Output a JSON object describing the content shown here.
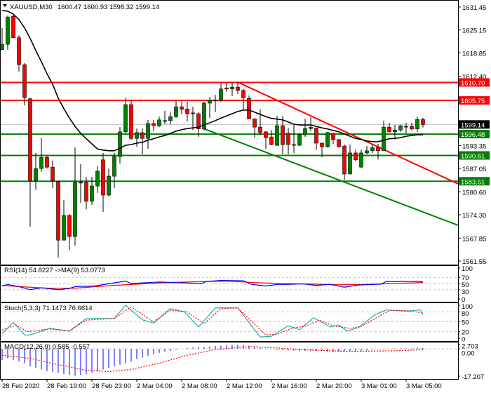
{
  "header": {
    "symbol": "XAUUSD,M30",
    "ohlc": "1600.47 1600.93 1598.32 1599.14"
  },
  "colors": {
    "bull": "#008000",
    "bear": "#ff0000",
    "ma": "#000000",
    "resistance": "#ff0000",
    "support": "#008000",
    "rsi": "#0000ff",
    "rsi_ma": "#ff0000",
    "stoch_main": "#20b2aa",
    "stoch_signal": "#ff0000",
    "macd_hist": "#0000ff",
    "macd_signal": "#ff0000"
  },
  "chart_data": [
    {
      "type": "candlestick",
      "title": "XAUUSD,M30",
      "ylim": [
        1561.55,
        1631.45
      ],
      "price_ticks": [
        "1631.45",
        "1625.15",
        "1618.85",
        "1612.40",
        "1593.35",
        "1587.05",
        "1580.60",
        "1574.30",
        "1567.85",
        "1561.55"
      ],
      "time_labels": [
        "28 Feb 2020",
        "28 Feb 19:00",
        "28 Feb 23:00",
        "2 Mar 04:00",
        "2 Mar 08:00",
        "2 Mar 12:00",
        "2 Mar 16:00",
        "2 Mar 20:00",
        "3 Mar 01:00",
        "3 Mar 05:00"
      ],
      "time_label_bars": [
        0,
        8,
        16,
        24,
        32,
        40,
        48,
        56,
        64,
        72
      ],
      "current_price": "1599.14",
      "candles_ohlc": [
        [
          1619.7,
          1625.7,
          1619.7,
          1621.2
        ],
        [
          1621.2,
          1629.1,
          1619.7,
          1628.7
        ],
        [
          1628.9,
          1629.5,
          1623.0,
          1623.0
        ],
        [
          1623.0,
          1623.7,
          1613.7,
          1615.6
        ],
        [
          1615.6,
          1616.0,
          1604.4,
          1606.5
        ],
        [
          1606.2,
          1606.5,
          1571.0,
          1583.6
        ],
        [
          1583.6,
          1591.3,
          1581.2,
          1587.0
        ],
        [
          1587.0,
          1595.5,
          1586.1,
          1590.1
        ],
        [
          1590.1,
          1590.5,
          1587.0,
          1587.4
        ],
        [
          1587.4,
          1589.2,
          1581.6,
          1583.6
        ],
        [
          1583.4,
          1583.6,
          1562.5,
          1567.3
        ],
        [
          1567.3,
          1578.3,
          1567.3,
          1574.1
        ],
        [
          1574.1,
          1574.5,
          1564.6,
          1568.3
        ],
        [
          1568.3,
          1592.8,
          1565.8,
          1583.2
        ],
        [
          1583.2,
          1588.2,
          1577.6,
          1583.2
        ],
        [
          1583.2,
          1584.7,
          1575.8,
          1578.0
        ],
        [
          1578.0,
          1584.7,
          1577.0,
          1582.2
        ],
        [
          1582.2,
          1587.6,
          1580.3,
          1586.3
        ],
        [
          1589.4,
          1591.3,
          1575.1,
          1579.7
        ],
        [
          1579.7,
          1587.0,
          1579.3,
          1584.9
        ],
        [
          1584.9,
          1591.3,
          1581.6,
          1590.3
        ],
        [
          1590.3,
          1598.4,
          1588.4,
          1597.1
        ],
        [
          1597.1,
          1606.5,
          1596.7,
          1604.6
        ],
        [
          1604.6,
          1605.8,
          1594.8,
          1595.3
        ],
        [
          1595.3,
          1598.0,
          1593.0,
          1596.9
        ],
        [
          1596.9,
          1598.0,
          1590.9,
          1595.3
        ],
        [
          1595.3,
          1600.4,
          1592.4,
          1599.4
        ],
        [
          1599.4,
          1600.4,
          1597.3,
          1598.8
        ],
        [
          1598.8,
          1601.3,
          1598.4,
          1600.4
        ],
        [
          1600.2,
          1602.9,
          1599.2,
          1600.2
        ],
        [
          1600.2,
          1602.5,
          1599.2,
          1601.3
        ],
        [
          1601.3,
          1605.6,
          1600.9,
          1604.0
        ],
        [
          1604.0,
          1605.4,
          1601.9,
          1603.3
        ],
        [
          1603.4,
          1605.4,
          1600.0,
          1602.1
        ],
        [
          1602.3,
          1604.0,
          1597.6,
          1602.3
        ],
        [
          1602.1,
          1602.5,
          1595.7,
          1597.9
        ],
        [
          1597.9,
          1605.4,
          1597.5,
          1605.0
        ],
        [
          1605.0,
          1606.7,
          1600.9,
          1605.8
        ],
        [
          1605.8,
          1607.3,
          1602.5,
          1605.8
        ],
        [
          1605.8,
          1610.6,
          1605.4,
          1608.9
        ],
        [
          1609.2,
          1610.6,
          1608.1,
          1608.9
        ],
        [
          1608.9,
          1610.8,
          1606.9,
          1609.4
        ],
        [
          1609.4,
          1610.8,
          1607.5,
          1608.5
        ],
        [
          1608.5,
          1608.9,
          1603.1,
          1606.5
        ],
        [
          1606.3,
          1607.1,
          1600.6,
          1600.7
        ],
        [
          1600.7,
          1600.7,
          1595.5,
          1598.4
        ],
        [
          1598.4,
          1603.3,
          1596.3,
          1596.9
        ],
        [
          1597.1,
          1597.3,
          1592.4,
          1595.5
        ],
        [
          1595.7,
          1597.6,
          1593.4,
          1593.6
        ],
        [
          1593.4,
          1601.5,
          1593.2,
          1598.8
        ],
        [
          1598.8,
          1601.5,
          1590.9,
          1593.6
        ],
        [
          1596.7,
          1598.2,
          1590.9,
          1593.6
        ],
        [
          1593.6,
          1599.0,
          1591.3,
          1593.6
        ],
        [
          1593.4,
          1596.9,
          1593.2,
          1596.3
        ],
        [
          1596.3,
          1600.7,
          1595.7,
          1598.0
        ],
        [
          1598.0,
          1601.1,
          1597.3,
          1598.4
        ],
        [
          1598.2,
          1598.2,
          1592.1,
          1594.0
        ],
        [
          1594.0,
          1594.0,
          1590.1,
          1593.0
        ],
        [
          1593.0,
          1597.1,
          1592.8,
          1596.9
        ],
        [
          1596.7,
          1596.7,
          1593.8,
          1595.0
        ],
        [
          1595.0,
          1595.0,
          1592.8,
          1593.0
        ],
        [
          1593.2,
          1593.6,
          1583.8,
          1585.5
        ],
        [
          1585.5,
          1593.6,
          1585.5,
          1591.3
        ],
        [
          1591.3,
          1592.2,
          1589.0,
          1589.4
        ],
        [
          1587.4,
          1592.2,
          1587.2,
          1591.3
        ],
        [
          1591.3,
          1593.2,
          1590.9,
          1591.9
        ],
        [
          1591.9,
          1593.8,
          1591.3,
          1592.8
        ],
        [
          1592.8,
          1593.8,
          1589.5,
          1591.9
        ],
        [
          1591.9,
          1600.2,
          1591.9,
          1598.4
        ],
        [
          1598.4,
          1599.6,
          1596.9,
          1597.1
        ],
        [
          1597.1,
          1599.0,
          1595.0,
          1597.6
        ],
        [
          1597.6,
          1599.0,
          1597.1,
          1598.8
        ],
        [
          1598.6,
          1599.6,
          1596.7,
          1598.6
        ],
        [
          1598.6,
          1599.6,
          1597.5,
          1597.9
        ],
        [
          1597.9,
          1601.3,
          1597.1,
          1600.5
        ],
        [
          1600.47,
          1600.93,
          1598.32,
          1599.14
        ]
      ],
      "moving_average": [
        1630.5,
        1630.3,
        1629.5,
        1628.0,
        1625.7,
        1622.8,
        1619.5,
        1616.4,
        1613.1,
        1610.2,
        1606.4,
        1603.5,
        1600.9,
        1598.6,
        1596.7,
        1595.2,
        1593.8,
        1592.4,
        1592.1,
        1591.9,
        1591.9,
        1592.6,
        1593.4,
        1593.6,
        1594.0,
        1594.2,
        1594.8,
        1595.2,
        1595.7,
        1596.1,
        1596.7,
        1597.3,
        1597.7,
        1598.0,
        1598.2,
        1598.4,
        1599.0,
        1599.6,
        1600.2,
        1600.9,
        1601.5,
        1602.1,
        1602.7,
        1603.1,
        1603.1,
        1602.5,
        1601.9,
        1601.3,
        1600.8,
        1600.6,
        1600.4,
        1599.8,
        1599.2,
        1599.0,
        1599.0,
        1599.0,
        1598.6,
        1598.2,
        1597.9,
        1597.5,
        1597.1,
        1596.5,
        1595.9,
        1595.3,
        1595.0,
        1594.6,
        1594.4,
        1594.4,
        1594.8,
        1595.2,
        1595.3,
        1595.5,
        1595.9,
        1596.1,
        1596.3,
        1596.3
      ],
      "horizontal_levels": [
        {
          "price": "1610.70",
          "kind": "resistance"
        },
        {
          "price": "1605.75",
          "kind": "resistance"
        },
        {
          "price": "1596.48",
          "kind": "support"
        },
        {
          "price": "1590.61",
          "kind": "support"
        },
        {
          "price": "1583.51",
          "kind": "support"
        }
      ],
      "trendlines": [
        {
          "kind": "resistance",
          "from": {
            "bar": 42.1,
            "price": 1610.7
          },
          "to": {
            "bar": 81.25,
            "price": 1582.8
          }
        },
        {
          "kind": "support",
          "from": {
            "bar": 35.9,
            "price": 1598.0
          },
          "to": {
            "bar": 81.25,
            "price": 1571.4
          }
        }
      ]
    },
    {
      "type": "line",
      "label": "RSI(14) 54.8227  ->MA(9) 53.0773",
      "ylim": [
        0,
        100
      ],
      "ticks": [
        "100",
        "70",
        "50",
        "30",
        "0"
      ],
      "levels": [
        70,
        50,
        30
      ],
      "rsi": [
        [
          0,
          42
        ],
        [
          1,
          47
        ],
        [
          3,
          40
        ],
        [
          5,
          30
        ],
        [
          7,
          36
        ],
        [
          10,
          30
        ],
        [
          12,
          34
        ],
        [
          13,
          40
        ],
        [
          16.5,
          42
        ],
        [
          22,
          58
        ],
        [
          23,
          50
        ],
        [
          28,
          55
        ],
        [
          35.5,
          50
        ],
        [
          36.5,
          57
        ],
        [
          39,
          60
        ],
        [
          43,
          59
        ],
        [
          44.5,
          47
        ],
        [
          47,
          42
        ],
        [
          49,
          47
        ],
        [
          51,
          47
        ],
        [
          53.5,
          49
        ],
        [
          56,
          44
        ],
        [
          58.5,
          47
        ],
        [
          61,
          38
        ],
        [
          63.5,
          45
        ],
        [
          67.5,
          48
        ],
        [
          68.5,
          57
        ],
        [
          70,
          56
        ],
        [
          74,
          57
        ],
        [
          75,
          54.82
        ]
      ],
      "rsi_ma": [
        [
          0,
          44
        ],
        [
          3,
          40
        ],
        [
          8,
          35
        ],
        [
          13,
          35
        ],
        [
          20,
          44
        ],
        [
          28,
          52
        ],
        [
          35,
          56
        ],
        [
          40,
          58
        ],
        [
          45,
          53
        ],
        [
          50,
          50
        ],
        [
          55,
          48
        ],
        [
          60,
          46
        ],
        [
          65,
          47
        ],
        [
          70,
          50
        ],
        [
          75,
          53.08
        ]
      ]
    },
    {
      "type": "line",
      "label": "Stoch(5,3,3) 71.1473 76.6614",
      "ylim": [
        0,
        100
      ],
      "ticks": [
        "100",
        "80",
        "50",
        "20",
        "0"
      ],
      "levels": [
        80,
        50,
        20
      ],
      "main": [
        [
          0,
          14
        ],
        [
          2,
          48
        ],
        [
          4,
          10
        ],
        [
          5,
          10
        ],
        [
          8.5,
          30
        ],
        [
          12,
          22
        ],
        [
          15,
          60
        ],
        [
          20,
          60
        ],
        [
          22,
          100
        ],
        [
          25,
          56
        ],
        [
          27,
          46
        ],
        [
          30,
          90
        ],
        [
          32.5,
          80
        ],
        [
          35,
          34
        ],
        [
          38,
          92
        ],
        [
          42,
          92
        ],
        [
          46,
          4
        ],
        [
          48,
          6
        ],
        [
          51,
          38
        ],
        [
          53,
          26
        ],
        [
          55.5,
          62
        ],
        [
          58.5,
          34
        ],
        [
          60,
          40
        ],
        [
          61.5,
          22
        ],
        [
          63.5,
          32
        ],
        [
          66.5,
          72
        ],
        [
          68.5,
          86
        ],
        [
          72,
          82
        ],
        [
          74.5,
          86
        ],
        [
          75,
          71.15
        ]
      ],
      "signal": [
        [
          0,
          25
        ],
        [
          2.5,
          40
        ],
        [
          4.5,
          20
        ],
        [
          8.5,
          28
        ],
        [
          12,
          22
        ],
        [
          15,
          55
        ],
        [
          20,
          60
        ],
        [
          23,
          95
        ],
        [
          27,
          50
        ],
        [
          30,
          85
        ],
        [
          33,
          80
        ],
        [
          36,
          44
        ],
        [
          39,
          90
        ],
        [
          42,
          92
        ],
        [
          47,
          10
        ],
        [
          49,
          12
        ],
        [
          52,
          32
        ],
        [
          54,
          36
        ],
        [
          56.5,
          55
        ],
        [
          59,
          38
        ],
        [
          62,
          30
        ],
        [
          64,
          36
        ],
        [
          67,
          65
        ],
        [
          69,
          84
        ],
        [
          72,
          84
        ],
        [
          75,
          76.66
        ]
      ]
    },
    {
      "type": "bar",
      "label": "MACD(12,26,9) 0.585 -0.557",
      "ylim": [
        -17.207,
        2.703
      ],
      "ticks": [
        "2.703",
        "0.00",
        "-17.207"
      ],
      "histogram": [
        -7,
        -6,
        -7,
        -8,
        -9,
        -11,
        -12,
        -13,
        -14,
        -14.5,
        -15,
        -16,
        -16.5,
        -17,
        -16.5,
        -16,
        -15,
        -14,
        -13,
        -12,
        -11,
        -10,
        -9,
        -8,
        -6.5,
        -5.5,
        -4.5,
        -3.5,
        -2.5,
        -1.8,
        -1.2,
        -0.5,
        0,
        0.5,
        0.8,
        1,
        1.2,
        1.5,
        1.8,
        2,
        2.2,
        2.5,
        2.7,
        2.4,
        2,
        1.5,
        0.8,
        0.2,
        -0.3,
        -0.6,
        -0.8,
        -1,
        -1.1,
        -1.2,
        -1.3,
        -1.2,
        -1.3,
        -1.4,
        -1.8,
        -2,
        -1.8,
        -1.6,
        -1.5,
        -1.4,
        -1.3,
        -1.0,
        -0.6,
        -0.2,
        0,
        0.1,
        0.2,
        0.3,
        0.3,
        0.4,
        0.5,
        0.585
      ],
      "signal": [
        [
          0,
          -4
        ],
        [
          5,
          -6
        ],
        [
          10,
          -10
        ],
        [
          15,
          -13.5
        ],
        [
          19,
          -14.3
        ],
        [
          23,
          -13
        ],
        [
          28,
          -9
        ],
        [
          33,
          -4
        ],
        [
          38,
          -0.5
        ],
        [
          44,
          1.5
        ],
        [
          48,
          0.8
        ],
        [
          55,
          -0.8
        ],
        [
          62,
          -1.6
        ],
        [
          70,
          -1.2
        ],
        [
          75,
          -0.557
        ]
      ]
    }
  ]
}
